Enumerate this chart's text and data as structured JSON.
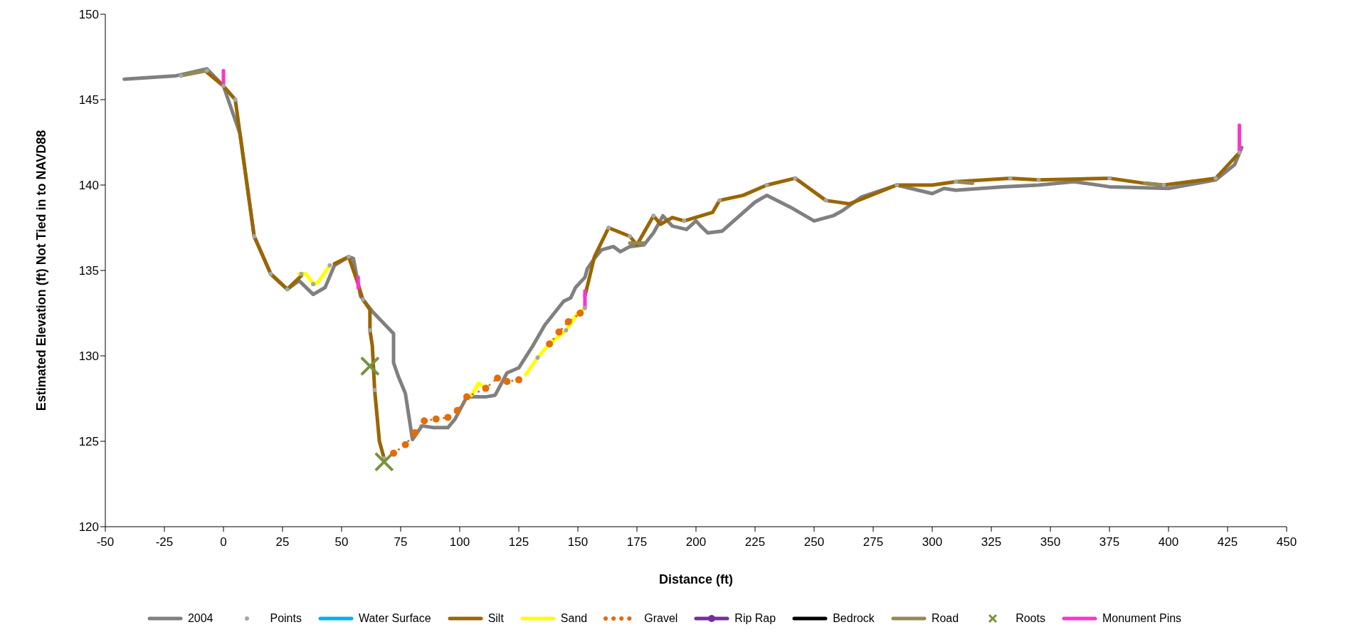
{
  "chart_data": {
    "type": "line",
    "xlabel": "Distance (ft)",
    "ylabel": "Estimated Elevation (ft) Not Tied in to NAVD88",
    "xlim": [
      -50,
      450
    ],
    "xticks": [
      -50,
      -25,
      0,
      25,
      50,
      75,
      100,
      125,
      150,
      175,
      200,
      225,
      250,
      275,
      300,
      325,
      350,
      375,
      400,
      425,
      450
    ],
    "ylim": [
      120,
      150
    ],
    "yticks": [
      120,
      125,
      130,
      135,
      140,
      145,
      150
    ],
    "grid": false,
    "legend": "bottom",
    "series": [
      {
        "name": "2004",
        "color": "#808080",
        "x": [
          -42,
          -20,
          -7,
          0,
          7,
          13,
          20,
          27,
          32,
          38,
          43,
          47,
          53,
          55,
          58,
          63,
          72,
          72,
          74,
          77,
          79,
          80,
          84,
          89,
          95,
          98,
          103,
          111,
          115,
          120,
          125,
          131,
          136,
          144,
          147,
          149,
          153,
          154,
          157,
          160,
          165,
          168,
          172,
          178,
          182,
          186,
          190,
          196,
          200,
          202,
          205,
          211,
          225,
          230,
          240,
          250,
          258,
          262,
          270,
          285,
          300,
          305,
          310,
          330,
          345,
          360,
          375,
          400,
          420,
          428,
          431
        ],
        "values": [
          146.2,
          146.4,
          146.8,
          145.8,
          143,
          137,
          134.8,
          133.9,
          134.4,
          133.6,
          134,
          135.3,
          135.8,
          135.7,
          133.5,
          132.6,
          131.3,
          129.6,
          128.8,
          127.8,
          126,
          125.1,
          125.9,
          125.8,
          125.8,
          126.3,
          127.6,
          127.6,
          127.7,
          129,
          129.3,
          130.6,
          131.8,
          133.2,
          133.4,
          134,
          134.6,
          135.1,
          135.7,
          136.2,
          136.4,
          136.1,
          136.4,
          136.5,
          137.2,
          138.2,
          137.6,
          137.4,
          137.9,
          137.6,
          137.2,
          137.3,
          139,
          139.4,
          138.7,
          137.9,
          138.2,
          138.5,
          139.3,
          140,
          139.5,
          139.8,
          139.7,
          139.9,
          140,
          140.2,
          139.9,
          139.8,
          140.3,
          141.2,
          142.2
        ]
      },
      {
        "name": "Points",
        "type": "scatter",
        "marker": "circle",
        "color": "#a6a6a6",
        "x": [
          -18,
          -7,
          0,
          5,
          13,
          20,
          27,
          33,
          38,
          45,
          53,
          59,
          62,
          64,
          68,
          133,
          145,
          153,
          163,
          172,
          182,
          195,
          210,
          230,
          242,
          255,
          285,
          310,
          333,
          345,
          375,
          398,
          420,
          430
        ],
        "values": [
          146.4,
          146.7,
          145.8,
          145,
          137,
          134.8,
          133.9,
          134.8,
          134.2,
          135.3,
          135.8,
          133.3,
          131.5,
          128,
          124,
          129.9,
          131.5,
          132.8,
          137.5,
          137,
          138.2,
          137.9,
          139.1,
          140,
          140.4,
          139.1,
          140,
          140.2,
          140.4,
          140.3,
          140.4,
          140,
          140.4,
          141.9
        ]
      },
      {
        "name": "Water Surface",
        "color": "#00b0f0"
      },
      {
        "name": "Silt",
        "color": "#996600",
        "x": [
          -7,
          0,
          5,
          13,
          20,
          27,
          33,
          34,
          45,
          47,
          53,
          57,
          59,
          62,
          62,
          63,
          64,
          66,
          68,
          69,
          153,
          157,
          163,
          172,
          175,
          182,
          185,
          190,
          195,
          207,
          210,
          220,
          230,
          242,
          255,
          265,
          285,
          300,
          310,
          333,
          345,
          375,
          390,
          398,
          420,
          430
        ],
        "values": [
          146.6,
          145.8,
          145,
          137,
          134.8,
          133.9,
          134.7,
          null,
          null,
          135.4,
          135.8,
          134.2,
          133.3,
          132.7,
          131.5,
          130.6,
          128,
          125,
          124,
          null,
          133.5,
          135.8,
          137.5,
          137,
          136.5,
          138.2,
          137.7,
          138.1,
          137.9,
          138.4,
          139.1,
          139.4,
          140,
          140.4,
          139.1,
          138.9,
          140,
          140,
          140.2,
          140.4,
          140.3,
          140.4,
          140.1,
          140,
          140.4,
          141.9
        ]
      },
      {
        "name": "Sand",
        "color": "#ffff00",
        "x": [
          32,
          35,
          38,
          40,
          45,
          46,
          105,
          108,
          110,
          111,
          128,
          133,
          138,
          145,
          150,
          153
        ],
        "values": [
          134.8,
          134.8,
          134.2,
          134.3,
          135.3,
          null,
          127.7,
          128.4,
          128.2,
          null,
          128.9,
          129.9,
          130.7,
          131.5,
          132.5,
          132.8
        ]
      },
      {
        "name": "Gravel",
        "line_style": "dotted",
        "marker": "circle",
        "color": "#e46c0a",
        "x": [
          72,
          77,
          81,
          85,
          90,
          95,
          99,
          103,
          111,
          116,
          120,
          125,
          130,
          138,
          142,
          146,
          151
        ],
        "values": [
          124.3,
          124.8,
          125.5,
          126.2,
          126.3,
          126.4,
          126.8,
          127.6,
          128.1,
          128.7,
          128.5,
          128.6,
          null,
          130.7,
          131.4,
          132,
          132.5
        ]
      },
      {
        "name": "Rip Rap",
        "marker": "circle",
        "color": "#7030a0"
      },
      {
        "name": "Bedrock",
        "color": "#000000"
      },
      {
        "name": "Road",
        "color": "#938953",
        "x": [
          -18,
          -7,
          0,
          172,
          178,
          180,
          310,
          317,
          320,
          390,
          397
        ],
        "values": [
          146.4,
          146.7,
          null,
          136.6,
          136.6,
          null,
          140.2,
          140.1,
          null,
          140.1,
          140
        ]
      },
      {
        "name": "Roots",
        "type": "scatter",
        "marker": "cross",
        "color": "#77933c",
        "x": [
          62,
          68
        ],
        "values": [
          129.4,
          123.8
        ]
      },
      {
        "name": "Monument Pins",
        "color": "#ff33cc",
        "x": [
          0,
          0,
          10,
          57,
          57,
          100,
          153,
          153,
          200,
          430,
          430
        ],
        "values": [
          146.7,
          145.9,
          null,
          134.6,
          134,
          null,
          133.8,
          132.8,
          null,
          143.5,
          141.9
        ]
      }
    ]
  }
}
